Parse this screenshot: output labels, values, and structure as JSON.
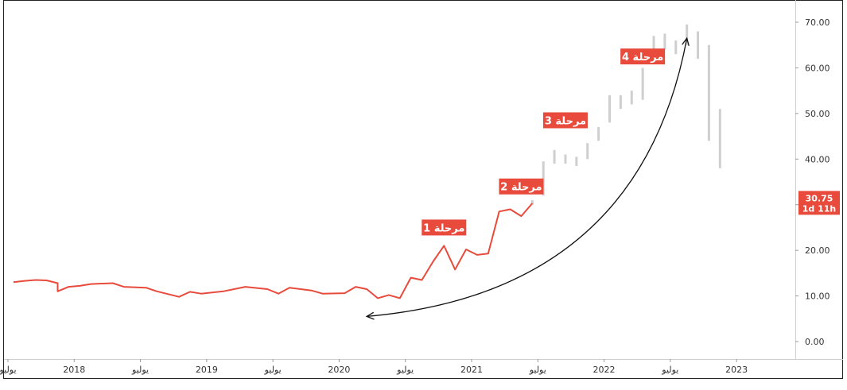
{
  "colors": {
    "line": "#e84a3c",
    "bars": "#cfcfcf",
    "label_bg": "#e84a3c",
    "label_text": "#ffffff",
    "axis_text": "#333333",
    "border": "#222222",
    "arrow": "#111111"
  },
  "chart_data": {
    "type": "line",
    "title": "",
    "xlabel": "",
    "ylabel": "",
    "ylim": [
      -3,
      74
    ],
    "grid": false,
    "y_ticks": [
      "70.00",
      "60.00",
      "50.00",
      "40.00",
      "30.00",
      "20.00",
      "10.00",
      "0.00"
    ],
    "x_ticks": [
      {
        "t": 2017.5,
        "label": "يوليو"
      },
      {
        "t": 2018.0,
        "label": "2018"
      },
      {
        "t": 2018.5,
        "label": "يوليو"
      },
      {
        "t": 2019.0,
        "label": "2019"
      },
      {
        "t": 2019.5,
        "label": "يوليو"
      },
      {
        "t": 2020.0,
        "label": "2020"
      },
      {
        "t": 2020.5,
        "label": "يوليو"
      },
      {
        "t": 2021.0,
        "label": "2021"
      },
      {
        "t": 2021.5,
        "label": "يوليو"
      },
      {
        "t": 2022.0,
        "label": "2022"
      },
      {
        "t": 2022.5,
        "label": "يوليو"
      },
      {
        "t": 2023.0,
        "label": "2023"
      }
    ],
    "x_range": [
      "2017-07",
      "2023-02"
    ],
    "series": [
      {
        "style": "line",
        "points": [
          [
            "2017-07",
            13.0
          ],
          [
            "2017-08",
            13.3
          ],
          [
            "2017-09",
            13.5
          ],
          [
            "2017-10",
            13.4
          ],
          [
            "2017-11",
            12.8
          ],
          [
            "2017-11",
            11.0
          ],
          [
            "2017-12",
            12.0
          ],
          [
            "2018-01",
            12.2
          ],
          [
            "2018-02",
            12.6
          ],
          [
            "2018-04",
            12.8
          ],
          [
            "2018-05",
            12.0
          ],
          [
            "2018-07",
            11.8
          ],
          [
            "2018-08",
            11.0
          ],
          [
            "2018-10",
            9.8
          ],
          [
            "2018-11",
            10.9
          ],
          [
            "2018-12",
            10.5
          ],
          [
            "2019-02",
            11.0
          ],
          [
            "2019-04",
            12.0
          ],
          [
            "2019-06",
            11.5
          ],
          [
            "2019-07",
            10.5
          ],
          [
            "2019-08",
            11.8
          ],
          [
            "2019-10",
            11.2
          ],
          [
            "2019-11",
            10.5
          ],
          [
            "2020-01",
            10.6
          ],
          [
            "2020-02",
            12.0
          ],
          [
            "2020-03",
            11.5
          ],
          [
            "2020-04",
            9.5
          ],
          [
            "2020-05",
            10.2
          ],
          [
            "2020-06",
            9.5
          ],
          [
            "2020-07",
            14.0
          ],
          [
            "2020-08",
            13.5
          ],
          [
            "2020-09",
            17.5
          ],
          [
            "2020-10",
            21.0
          ],
          [
            "2020-11",
            15.8
          ],
          [
            "2020-12",
            20.2
          ],
          [
            "2021-01",
            19.0
          ],
          [
            "2021-02",
            19.3
          ],
          [
            "2021-03",
            28.5
          ],
          [
            "2021-04",
            29.0
          ],
          [
            "2021-05",
            27.5
          ],
          [
            "2021-06",
            30.3
          ]
        ]
      },
      {
        "style": "range-bars",
        "points": [
          [
            "2021-06",
            30.0,
            31.0
          ],
          [
            "2021-07",
            32.0,
            39.5
          ],
          [
            "2021-08",
            39.0,
            42.0
          ],
          [
            "2021-09",
            39.0,
            41.0
          ],
          [
            "2021-10",
            38.5,
            40.5
          ],
          [
            "2021-11",
            40.0,
            43.5
          ],
          [
            "2021-12",
            44.0,
            47.0
          ],
          [
            "2022-01",
            48.0,
            54.0
          ],
          [
            "2022-02",
            51.0,
            54.0
          ],
          [
            "2022-03",
            52.0,
            55.0
          ],
          [
            "2022-04",
            53.0,
            60.0
          ],
          [
            "2022-05",
            62.0,
            67.0
          ],
          [
            "2022-06",
            64.0,
            67.5
          ],
          [
            "2022-07",
            63.0,
            66.0
          ],
          [
            "2022-08",
            65.0,
            69.5
          ],
          [
            "2022-09",
            62.0,
            68.0
          ],
          [
            "2022-10",
            44.0,
            65.0
          ],
          [
            "2022-11",
            38.0,
            51.0
          ]
        ]
      }
    ],
    "annotations": [
      {
        "text": "مرحلة 1",
        "anchor": [
          "2020-10",
          25.0
        ]
      },
      {
        "text": "مرحلة 2",
        "anchor": [
          "2021-05",
          34.0
        ]
      },
      {
        "text": "مرحلة 3",
        "anchor": [
          "2021-09",
          48.5
        ]
      },
      {
        "text": "مرحلة 4",
        "anchor": [
          "2022-04",
          62.5
        ]
      }
    ],
    "arrow": {
      "from": [
        "2020-03",
        5.5
      ],
      "to": [
        "2022-08",
        66.5
      ]
    },
    "last_price": {
      "value": "30.75",
      "countdown": "1d 11h"
    }
  }
}
